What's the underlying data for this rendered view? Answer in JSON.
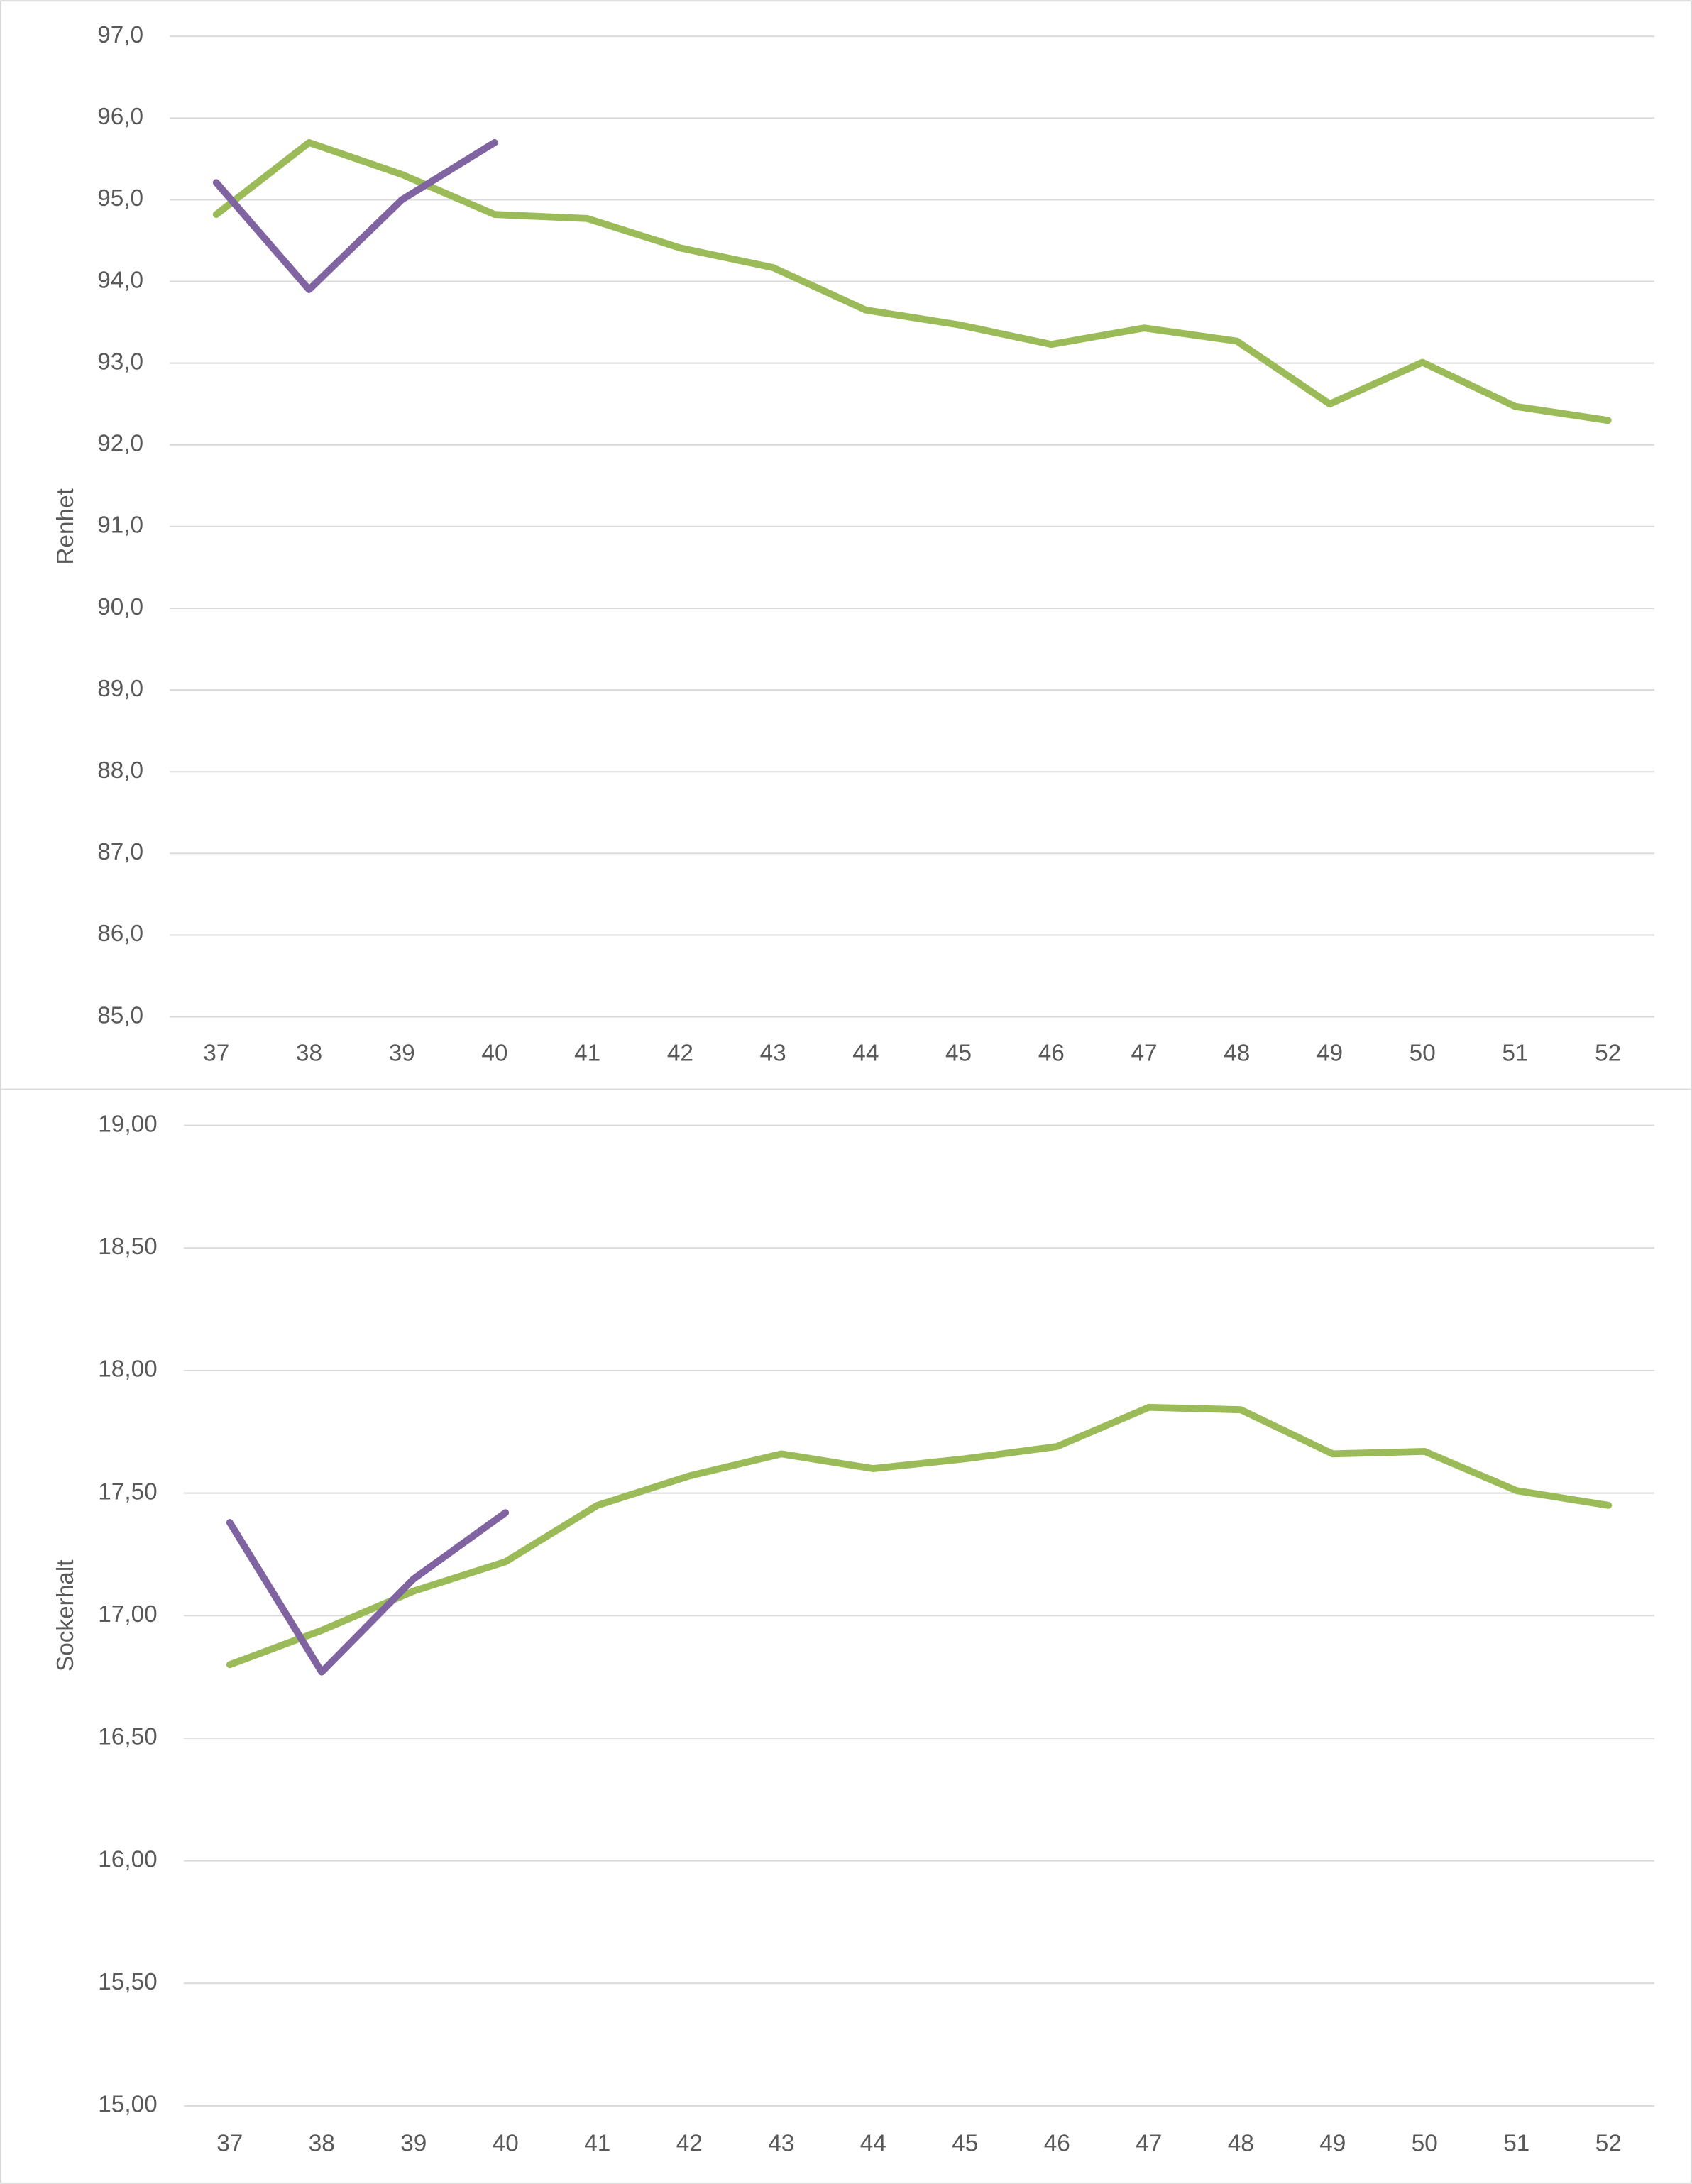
{
  "chart_data": [
    {
      "type": "line",
      "ylabel": "Renhet",
      "categories": [
        "37",
        "38",
        "39",
        "40",
        "41",
        "42",
        "43",
        "44",
        "45",
        "46",
        "47",
        "48",
        "49",
        "50",
        "51",
        "52"
      ],
      "series": [
        {
          "color": "#9bbb59",
          "values": [
            94.82,
            95.7,
            95.31,
            94.82,
            94.77,
            94.41,
            94.17,
            93.65,
            93.47,
            93.23,
            93.43,
            93.27,
            92.5,
            93.01,
            92.47,
            92.3
          ]
        },
        {
          "color": "#8064a2",
          "values": [
            95.21,
            93.9,
            95.0,
            95.7,
            null,
            null,
            null,
            null,
            null,
            null,
            null,
            null,
            null,
            null,
            null,
            null
          ]
        }
      ],
      "ylim": [
        85,
        97
      ],
      "yticks": [
        {
          "value": 85,
          "label": "85,0"
        },
        {
          "value": 86,
          "label": "86,0"
        },
        {
          "value": 87,
          "label": "87,0"
        },
        {
          "value": 88,
          "label": "88,0"
        },
        {
          "value": 89,
          "label": "89,0"
        },
        {
          "value": 90,
          "label": "90,0"
        },
        {
          "value": 91,
          "label": "91,0"
        },
        {
          "value": 92,
          "label": "92,0"
        },
        {
          "value": 93,
          "label": "93,0"
        },
        {
          "value": 94,
          "label": "94,0"
        },
        {
          "value": 95,
          "label": "95,0"
        },
        {
          "value": 96,
          "label": "96,0"
        },
        {
          "value": 97,
          "label": "97,0"
        }
      ],
      "grid": true
    },
    {
      "type": "line",
      "ylabel": "Sockerhalt",
      "categories": [
        "37",
        "38",
        "39",
        "40",
        "41",
        "42",
        "43",
        "44",
        "45",
        "46",
        "47",
        "48",
        "49",
        "50",
        "51",
        "52"
      ],
      "series": [
        {
          "color": "#9bbb59",
          "values": [
            16.8,
            16.94,
            17.1,
            17.22,
            17.45,
            17.57,
            17.66,
            17.6,
            17.64,
            17.69,
            17.85,
            17.84,
            17.66,
            17.67,
            17.51,
            17.45
          ]
        },
        {
          "color": "#8064a2",
          "values": [
            17.38,
            16.77,
            17.15,
            17.42,
            null,
            null,
            null,
            null,
            null,
            null,
            null,
            null,
            null,
            null,
            null,
            null
          ]
        }
      ],
      "ylim": [
        15,
        19
      ],
      "yticks": [
        {
          "value": 15,
          "label": "15,00"
        },
        {
          "value": 15.5,
          "label": "15,50"
        },
        {
          "value": 16,
          "label": "16,00"
        },
        {
          "value": 16.5,
          "label": "16,50"
        },
        {
          "value": 17,
          "label": "17,00"
        },
        {
          "value": 17.5,
          "label": "17,50"
        },
        {
          "value": 18,
          "label": "18,00"
        },
        {
          "value": 18.5,
          "label": "18,50"
        },
        {
          "value": 19,
          "label": "19,00"
        }
      ],
      "grid": true
    }
  ]
}
